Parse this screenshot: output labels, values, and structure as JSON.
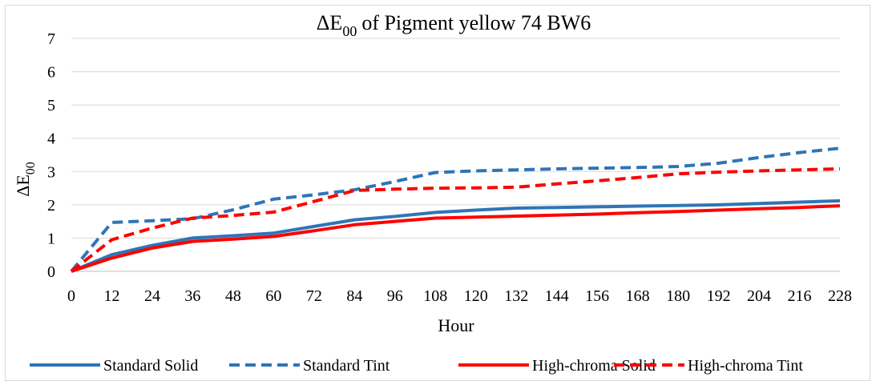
{
  "chart_data": {
    "type": "line",
    "title": "of  Pigment yellow 74 BW6",
    "title_symbol": "ΔE",
    "title_subscript": "00",
    "xlabel": "Hour",
    "ylabel_symbol": "ΔE",
    "ylabel_subscript": "00",
    "xlim": [
      0,
      228
    ],
    "ylim": [
      0,
      7
    ],
    "x_ticks": [
      "0",
      "12",
      "24",
      "36",
      "48",
      "60",
      "72",
      "84",
      "96",
      "108",
      "120",
      "132",
      "144",
      "156",
      "168",
      "180",
      "192",
      "204",
      "216",
      "228"
    ],
    "y_ticks": [
      "0",
      "1",
      "2",
      "3",
      "4",
      "5",
      "6",
      "7"
    ],
    "grid": true,
    "legend_position": "bottom",
    "series": [
      {
        "name": "Standard Solid",
        "color": "#2e75b6",
        "dash": "solid",
        "points": [
          [
            0,
            0
          ],
          [
            12,
            0.5
          ],
          [
            24,
            0.78
          ],
          [
            36,
            1.0
          ],
          [
            48,
            1.07
          ],
          [
            60,
            1.15
          ],
          [
            72,
            1.35
          ],
          [
            84,
            1.55
          ],
          [
            96,
            1.65
          ],
          [
            108,
            1.77
          ],
          [
            120,
            1.84
          ],
          [
            132,
            1.9
          ],
          [
            144,
            1.92
          ],
          [
            156,
            1.94
          ],
          [
            168,
            1.96
          ],
          [
            180,
            1.98
          ],
          [
            192,
            2.0
          ],
          [
            204,
            2.04
          ],
          [
            216,
            2.08
          ],
          [
            228,
            2.12
          ]
        ]
      },
      {
        "name": "Standard Tint",
        "color": "#2e75b6",
        "dash": "dashed",
        "points": [
          [
            0,
            0
          ],
          [
            12,
            1.47
          ],
          [
            24,
            1.52
          ],
          [
            36,
            1.58
          ],
          [
            48,
            1.85
          ],
          [
            60,
            2.17
          ],
          [
            72,
            2.3
          ],
          [
            84,
            2.45
          ],
          [
            96,
            2.7
          ],
          [
            108,
            2.97
          ],
          [
            120,
            3.02
          ],
          [
            132,
            3.05
          ],
          [
            144,
            3.08
          ],
          [
            156,
            3.1
          ],
          [
            168,
            3.12
          ],
          [
            180,
            3.15
          ],
          [
            192,
            3.25
          ],
          [
            204,
            3.42
          ],
          [
            216,
            3.57
          ],
          [
            228,
            3.7
          ]
        ]
      },
      {
        "name": "High-chroma Solid",
        "color": "#ff0000",
        "dash": "solid",
        "points": [
          [
            0,
            0
          ],
          [
            12,
            0.4
          ],
          [
            24,
            0.7
          ],
          [
            36,
            0.9
          ],
          [
            48,
            0.97
          ],
          [
            60,
            1.05
          ],
          [
            72,
            1.22
          ],
          [
            84,
            1.4
          ],
          [
            96,
            1.5
          ],
          [
            108,
            1.6
          ],
          [
            120,
            1.63
          ],
          [
            132,
            1.66
          ],
          [
            144,
            1.69
          ],
          [
            156,
            1.72
          ],
          [
            168,
            1.76
          ],
          [
            180,
            1.8
          ],
          [
            192,
            1.84
          ],
          [
            204,
            1.88
          ],
          [
            216,
            1.92
          ],
          [
            228,
            1.97
          ]
        ]
      },
      {
        "name": "High-chroma Tint",
        "color": "#ff0000",
        "dash": "dashed",
        "points": [
          [
            0,
            0
          ],
          [
            12,
            0.95
          ],
          [
            24,
            1.3
          ],
          [
            36,
            1.6
          ],
          [
            48,
            1.68
          ],
          [
            60,
            1.78
          ],
          [
            72,
            2.1
          ],
          [
            84,
            2.43
          ],
          [
            96,
            2.47
          ],
          [
            108,
            2.5
          ],
          [
            120,
            2.51
          ],
          [
            132,
            2.53
          ],
          [
            144,
            2.63
          ],
          [
            156,
            2.72
          ],
          [
            168,
            2.82
          ],
          [
            180,
            2.93
          ],
          [
            192,
            2.98
          ],
          [
            204,
            3.02
          ],
          [
            216,
            3.05
          ],
          [
            228,
            3.08
          ]
        ]
      }
    ]
  }
}
